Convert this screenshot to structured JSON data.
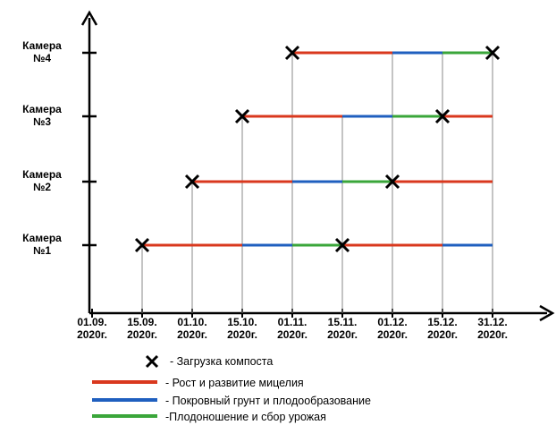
{
  "chart_data": {
    "type": "gantt",
    "x_categories": [
      [
        "01.09.",
        "2020г."
      ],
      [
        "15.09.",
        "2020г."
      ],
      [
        "01.10.",
        "2020г."
      ],
      [
        "15.10.",
        "2020г."
      ],
      [
        "01.11.",
        "2020г."
      ],
      [
        "15.11.",
        "2020г."
      ],
      [
        "01.12.",
        "2020г."
      ],
      [
        "15.12.",
        "2020г."
      ],
      [
        "31.12.",
        "2020г."
      ]
    ],
    "rows": [
      {
        "label": [
          "Камера",
          "№1"
        ],
        "segments": [
          {
            "phase": "growth",
            "from": 1,
            "to": 3
          },
          {
            "phase": "casing",
            "from": 3,
            "to": 4
          },
          {
            "phase": "fruiting",
            "from": 4,
            "to": 5
          },
          {
            "phase": "growth",
            "from": 5,
            "to": 7
          },
          {
            "phase": "casing",
            "from": 7,
            "to": 8
          }
        ],
        "loads": [
          1,
          5
        ]
      },
      {
        "label": [
          "Камера",
          "№2"
        ],
        "segments": [
          {
            "phase": "growth",
            "from": 2,
            "to": 4
          },
          {
            "phase": "casing",
            "from": 4,
            "to": 5
          },
          {
            "phase": "fruiting",
            "from": 5,
            "to": 6
          },
          {
            "phase": "growth",
            "from": 6,
            "to": 8
          }
        ],
        "loads": [
          2,
          6
        ]
      },
      {
        "label": [
          "Камера",
          "№3"
        ],
        "segments": [
          {
            "phase": "growth",
            "from": 3,
            "to": 5
          },
          {
            "phase": "casing",
            "from": 5,
            "to": 6
          },
          {
            "phase": "fruiting",
            "from": 6,
            "to": 7
          },
          {
            "phase": "growth",
            "from": 7,
            "to": 8
          }
        ],
        "loads": [
          3,
          7
        ]
      },
      {
        "label": [
          "Камера",
          "№4"
        ],
        "segments": [
          {
            "phase": "growth",
            "from": 4,
            "to": 6
          },
          {
            "phase": "casing",
            "from": 6,
            "to": 7
          },
          {
            "phase": "fruiting",
            "from": 7,
            "to": 8
          }
        ],
        "loads": [
          4,
          8
        ]
      }
    ],
    "colors": {
      "growth": "#d9381e",
      "casing": "#1f5fbf",
      "fruiting": "#3aa63a",
      "marker": "#000000"
    },
    "legend": [
      {
        "key": "load",
        "text": "- Загрузка компоста"
      },
      {
        "key": "growth",
        "text": "- Рост и развитие мицелия"
      },
      {
        "key": "casing",
        "text": "- Покровный грунт и плодообразование"
      },
      {
        "key": "fruiting",
        "text": "-Плодоношение и сбор урожая"
      }
    ]
  }
}
